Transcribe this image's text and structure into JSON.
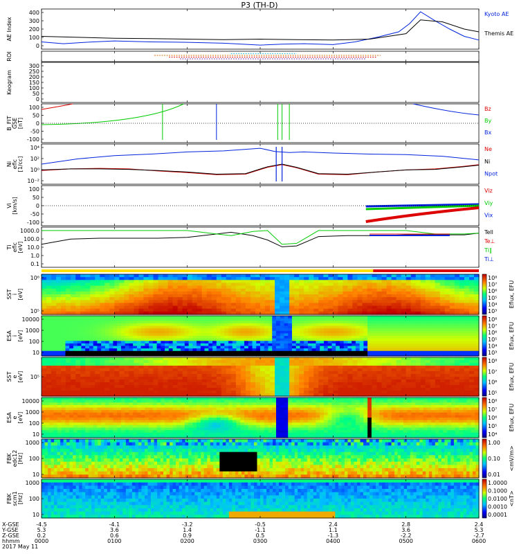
{
  "title": "P3 (TH-D)",
  "colors": {
    "black": "#000000",
    "blue": "#0022dd",
    "red": "#dd0000",
    "green": "#00cc00",
    "cyan": "#22bbdd",
    "orange": "#e07000",
    "purple": "#7a3fb0"
  },
  "panels": [
    {
      "id": "ae",
      "ylabel": [
        "AE Index"
      ],
      "yticks": [
        "400",
        "300",
        "200",
        "100",
        "0"
      ],
      "legend": [
        {
          "text": "Kyoto AE",
          "color": "#0022dd"
        },
        {
          "text": "Themis AE",
          "color": "#000000"
        }
      ]
    },
    {
      "id": "roi",
      "ylabel": [
        "ROI"
      ],
      "yticks": [],
      "legend": []
    },
    {
      "id": "keogram",
      "ylabel": [
        "Keogram"
      ],
      "yticks": [
        "300",
        "250",
        "200",
        "150",
        "100",
        "50",
        "0"
      ],
      "legend": []
    },
    {
      "id": "bfit",
      "ylabel": [
        "B_FIT",
        "GSE",
        "[nT]"
      ],
      "yticks": [
        "100",
        "50",
        "0",
        "-50",
        "-100"
      ],
      "legend": [
        {
          "text": "Bz",
          "color": "#dd0000"
        },
        {
          "text": "By",
          "color": "#00cc00"
        },
        {
          "text": "Bx",
          "color": "#0022dd"
        }
      ]
    },
    {
      "id": "ni",
      "ylabel": [
        "Ni",
        "eflc",
        "[1/cc]"
      ],
      "yticks": [
        "10⁴",
        "10²",
        "10⁰",
        "10⁻²"
      ],
      "legend": [
        {
          "text": "Ne",
          "color": "#dd0000"
        },
        {
          "text": "Ni",
          "color": "#000000"
        },
        {
          "text": "Npot",
          "color": "#0022dd"
        }
      ]
    },
    {
      "id": "vi",
      "ylabel": [
        "Vi",
        "[km/s]"
      ],
      "yticks": [
        "100",
        "50",
        "0",
        "-50",
        "-100"
      ],
      "legend": [
        {
          "text": "Viz",
          "color": "#dd0000"
        },
        {
          "text": "Viy",
          "color": "#00cc00"
        },
        {
          "text": "Vix",
          "color": "#0022dd"
        }
      ]
    },
    {
      "id": "ti",
      "ylabel": [
        "Ti",
        "eflc",
        "[eV]"
      ],
      "yticks": [
        "1000.0",
        "100.0",
        "10.0",
        "1.0",
        "0.1"
      ],
      "legend": [
        {
          "text": "Tell",
          "color": "#000000"
        },
        {
          "text": "Te⊥",
          "color": "#dd0000"
        },
        {
          "text": "Ti‖",
          "color": "#00cc00"
        },
        {
          "text": "Ti⊥",
          "color": "#0022dd"
        }
      ]
    },
    {
      "id": "sst1",
      "ylabel": [
        "SST",
        "i",
        "[eV]"
      ],
      "yticks": [
        "10⁶",
        "10⁵"
      ],
      "legend": []
    },
    {
      "id": "esa1",
      "ylabel": [
        "ESA",
        "i",
        "[eV]"
      ],
      "yticks": [
        "10000",
        "1000",
        "100",
        "10"
      ],
      "legend": []
    },
    {
      "id": "sst2",
      "ylabel": [
        "SST",
        "e",
        "[eV]"
      ],
      "yticks": [
        "10⁵"
      ],
      "legend": []
    },
    {
      "id": "esa2",
      "ylabel": [
        "ESA",
        "e",
        "[eV]"
      ],
      "yticks": [
        "10000",
        "1000",
        "100",
        "10"
      ],
      "legend": []
    },
    {
      "id": "fbk1",
      "ylabel": [
        "FBK",
        "edc12",
        "[Hz]"
      ],
      "yticks": [
        "1000",
        "100",
        "10"
      ],
      "legend": []
    },
    {
      "id": "fbk2",
      "ylabel": [
        "FBK",
        "scm1",
        "[Hz]"
      ],
      "yticks": [
        "1000",
        "100",
        "10"
      ],
      "legend": []
    }
  ],
  "colorbars": [
    {
      "label": "Eflux, EFU",
      "ticks": [
        "10⁸",
        "10⁷",
        "10⁶",
        "10⁵",
        "10⁴",
        "10³"
      ]
    },
    {
      "label": "Eflux, EFU",
      "ticks": [
        "10⁸",
        "10⁷",
        "10⁶",
        "10⁵",
        "10⁴",
        "10³"
      ]
    },
    {
      "label": "Eflux, EFU",
      "ticks": [
        "10⁸",
        "10⁷",
        "10⁶",
        "10⁵"
      ]
    },
    {
      "label": "Eflux, EFU",
      "ticks": [
        "10⁸",
        "10⁷",
        "10⁶",
        "10⁵",
        "10⁴"
      ]
    },
    {
      "label": "<mV/m>",
      "ticks": [
        "1.00",
        "0.10",
        "0.01"
      ]
    },
    {
      "label": "<nT>",
      "ticks": [
        "1.0000",
        "0.1000",
        "0.0100",
        "0.0010",
        "0.0001"
      ]
    }
  ],
  "footer": {
    "row_labels": [
      "X-GSE",
      "Y-GSE",
      "Z-GSE",
      "hhmm",
      "2017 May 11"
    ],
    "columns": [
      [
        "-4.5",
        "5.3",
        "0.2",
        "0000"
      ],
      [
        "-4.1",
        "3.6",
        "0.6",
        "0100"
      ],
      [
        "-3.2",
        "1.4",
        "0.9",
        "0200"
      ],
      [
        "-0.5",
        "-1.1",
        "0.5",
        "0300"
      ],
      [
        "2.4",
        "1.1",
        "-1.3",
        "0400"
      ],
      [
        "2.8",
        "3.6",
        "-2.2",
        "0500"
      ],
      [
        "2.4",
        "5.3",
        "-2.7",
        "0600"
      ]
    ]
  },
  "chart_data": {
    "type": "line",
    "title": "P3 (TH-D)",
    "xlabel": "hhmm",
    "x_ticks": [
      "0000",
      "0100",
      "0200",
      "0300",
      "0400",
      "0500",
      "0600"
    ],
    "x_range_hours": [
      0,
      6
    ],
    "series": [
      {
        "name": "Kyoto AE",
        "panel": "ae",
        "x": [
          0,
          0.3,
          0.6,
          1.0,
          1.5,
          2.0,
          2.5,
          3.0,
          3.3,
          3.6,
          4.0,
          4.3,
          4.6,
          4.9,
          5.05,
          5.2,
          5.4,
          5.6,
          5.8,
          6.0
        ],
        "y": [
          60,
          40,
          55,
          70,
          60,
          55,
          45,
          25,
          35,
          40,
          30,
          60,
          110,
          170,
          260,
          390,
          290,
          200,
          120,
          80
        ]
      },
      {
        "name": "Themis AE",
        "panel": "ae",
        "x": [
          0,
          0.5,
          1.0,
          1.5,
          2.0,
          2.5,
          3.0,
          3.5,
          4.0,
          4.5,
          5.0,
          5.2,
          5.5,
          5.8,
          6.0
        ],
        "y": [
          120,
          110,
          100,
          95,
          90,
          85,
          90,
          85,
          80,
          90,
          150,
          300,
          280,
          200,
          170
        ]
      },
      {
        "name": "Ne",
        "panel": "ni",
        "x": [
          0,
          0.4,
          0.8,
          1.2,
          1.6,
          2.0,
          2.4,
          2.8,
          3.1,
          3.3,
          3.5,
          3.8,
          4.2,
          4.6,
          5.0,
          5.4,
          5.8,
          6.0
        ],
        "y_log10": [
          -0.2,
          0.1,
          0.2,
          0.1,
          -0.3,
          -0.6,
          -1.0,
          -0.9,
          0.4,
          0.9,
          0.3,
          -0.9,
          -1.0,
          -0.5,
          -0.1,
          0.1,
          0.6,
          0.9
        ]
      },
      {
        "name": "Ni",
        "panel": "ni",
        "x": [
          0,
          0.4,
          0.8,
          1.2,
          1.6,
          2.0,
          2.4,
          2.8,
          3.1,
          3.3,
          3.5,
          3.8,
          4.2,
          4.6,
          5.0,
          5.4,
          5.8,
          6.0
        ],
        "y_log10": [
          -0.1,
          0.1,
          0.1,
          0.0,
          -0.2,
          -0.5,
          -0.9,
          -0.8,
          0.5,
          1.0,
          0.4,
          -0.8,
          -0.9,
          -0.5,
          -0.1,
          0.0,
          0.5,
          0.8
        ]
      },
      {
        "name": "Npot",
        "panel": "ni",
        "x": [
          0,
          0.5,
          1.0,
          1.5,
          2.0,
          2.5,
          2.8,
          3.0,
          3.2,
          3.4,
          3.6,
          4.0,
          4.5,
          5.0,
          5.5,
          6.0
        ],
        "y_log10": [
          1.0,
          2.0,
          2.6,
          2.9,
          3.3,
          3.5,
          3.8,
          4.0,
          3.4,
          3.2,
          3.3,
          3.1,
          2.9,
          2.8,
          2.5,
          1.8
        ]
      },
      {
        "name": "Tell",
        "panel": "ti",
        "x": [
          0,
          0.4,
          0.8,
          1.2,
          1.6,
          2.0,
          2.3,
          2.6,
          2.9,
          3.1,
          3.3,
          3.5,
          3.8,
          4.2,
          4.6,
          5.0,
          5.4,
          5.8,
          6.0
        ],
        "y_log10": [
          1.5,
          2.1,
          2.2,
          2.2,
          2.2,
          2.3,
          2.6,
          2.9,
          2.5,
          2.0,
          1.2,
          1.3,
          2.4,
          2.5,
          2.5,
          2.6,
          2.6,
          2.6,
          2.8
        ]
      },
      {
        "name": "Ti‖",
        "panel": "ti",
        "x": [
          0,
          0.5,
          1.0,
          1.5,
          2.0,
          2.3,
          2.6,
          2.9,
          3.1,
          3.3,
          3.5,
          3.8,
          4.2,
          4.6,
          5.0,
          5.4,
          5.8,
          6.0
        ],
        "y_log10": [
          3.1,
          3.1,
          3.1,
          3.1,
          3.1,
          2.8,
          2.5,
          3.0,
          3.1,
          1.5,
          1.6,
          3.1,
          3.1,
          3.1,
          3.1,
          2.7,
          2.7,
          2.8
        ]
      }
    ]
  }
}
